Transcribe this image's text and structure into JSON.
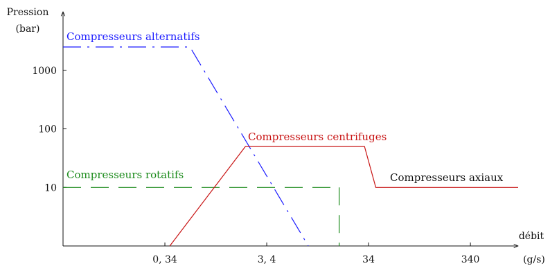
{
  "chart_data": {
    "type": "line",
    "ylabel_line1": "Pression",
    "ylabel_line2": "(bar)",
    "xlabel_line1": "débit",
    "xlabel_line2": "(g/s)",
    "x_scale": "log",
    "y_scale": "log",
    "xlim": [
      0.034,
      1000
    ],
    "ylim": [
      1,
      10000
    ],
    "x_ticks": [
      {
        "value": 0.34,
        "label": "0, 34"
      },
      {
        "value": 3.4,
        "label": "3, 4"
      },
      {
        "value": 34,
        "label": "34"
      },
      {
        "value": 340,
        "label": "340"
      }
    ],
    "y_ticks": [
      {
        "value": 10,
        "label": "10"
      },
      {
        "value": 100,
        "label": "100"
      },
      {
        "value": 1000,
        "label": "1000"
      }
    ],
    "grid": false,
    "series": [
      {
        "name": "Compresseurs alternatifs",
        "color": "#1a1aff",
        "dash": "dash-dot",
        "points": [
          [
            0.034,
            2500
          ],
          [
            0.6,
            2500
          ],
          [
            8.7,
            1
          ]
        ]
      },
      {
        "name": "Compresseurs rotatifs",
        "color": "#1a8a1a",
        "dash": "dashed",
        "points": [
          [
            0.034,
            10
          ],
          [
            16,
            10
          ]
        ],
        "extra_segments": [
          [
            [
              17.5,
              10
            ],
            [
              17.5,
              1
            ]
          ]
        ]
      },
      {
        "name": "Compresseurs centrifuges",
        "color": "#c81414",
        "dash": "solid",
        "points": [
          [
            0.38,
            1
          ],
          [
            2.1,
            50
          ],
          [
            31,
            50
          ],
          [
            40,
            10
          ],
          [
            1000,
            10
          ]
        ]
      },
      {
        "name": "Compresseurs axiaux",
        "color": "#111111",
        "dash": "none",
        "points": []
      }
    ]
  }
}
